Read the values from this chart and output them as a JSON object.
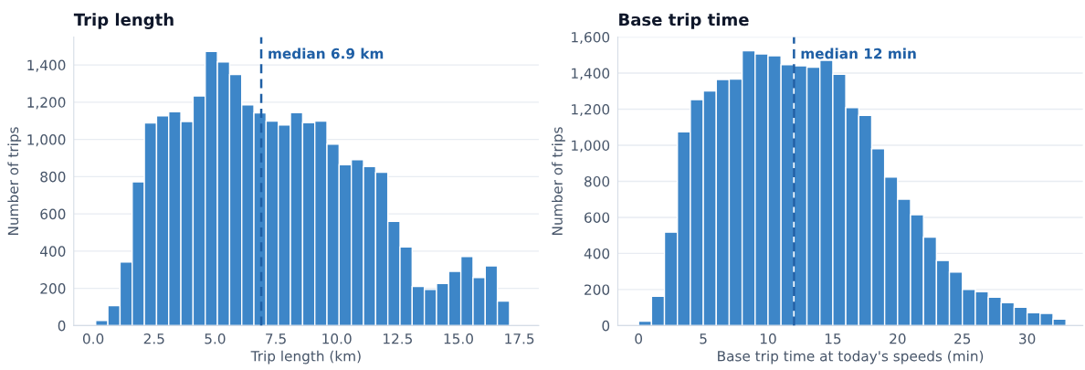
{
  "chart_data": [
    {
      "type": "histogram",
      "title": "Trip length",
      "xlabel": "Trip length (km)",
      "ylabel": "Number of trips",
      "color": "#3d86c8",
      "bins": [
        0.1,
        0.6,
        1.1,
        1.6,
        2.1,
        2.6,
        3.1,
        3.6,
        4.1,
        4.6,
        5.1,
        5.6,
        6.1,
        6.6,
        7.1,
        7.6,
        8.1,
        8.6,
        9.1,
        9.6,
        10.1,
        10.6,
        11.1,
        11.6,
        12.1,
        12.6,
        13.1,
        13.6,
        14.1,
        14.6,
        15.1,
        15.6,
        16.1,
        16.6,
        17.1,
        17.6
      ],
      "values": [
        27,
        107,
        342,
        772,
        1088,
        1126,
        1149,
        1096,
        1233,
        1472,
        1416,
        1348,
        1185,
        1142,
        1098,
        1077,
        1144,
        1090,
        1098,
        975,
        864,
        891,
        854,
        823,
        560,
        422,
        210,
        194,
        226,
        291,
        371,
        258,
        321,
        132,
        null
      ],
      "xlim": [
        -0.8,
        18.3
      ],
      "ylim": [
        0,
        1550
      ],
      "xticks": [
        {
          "value": 0,
          "label": "0.0"
        },
        {
          "value": 2.5,
          "label": "2.5"
        },
        {
          "value": 5,
          "label": "5.0"
        },
        {
          "value": 7.5,
          "label": "7.5"
        },
        {
          "value": 10,
          "label": "10.0"
        },
        {
          "value": 12.5,
          "label": "12.5"
        },
        {
          "value": 15,
          "label": "15.0"
        },
        {
          "value": 17.5,
          "label": "17.5"
        }
      ],
      "yticks": [
        0,
        200,
        400,
        600,
        800,
        {
          "value": 1000,
          "label": "1,000"
        },
        {
          "value": 1200,
          "label": "1,200"
        },
        {
          "value": 1400,
          "label": "1,400"
        }
      ],
      "ref_lines": [
        {
          "axis": "x",
          "value": 6.9,
          "label": "median 6.9 km",
          "color": "#1f5fa5",
          "line_style": "dashed"
        }
      ],
      "grid": "y"
    },
    {
      "type": "histogram",
      "title": "Base trip time",
      "xlabel": "Base trip time at today's speeds (min)",
      "ylabel": "Number of trips",
      "color": "#3d86c8",
      "bins": [
        0,
        1,
        2,
        3,
        4,
        5,
        6,
        7,
        8,
        9,
        10,
        11,
        12,
        13,
        14,
        15,
        16,
        17,
        18,
        19,
        20,
        21,
        22,
        23,
        24,
        25,
        26,
        27,
        28,
        29,
        30,
        31,
        32,
        33
      ],
      "values": [
        25,
        162,
        518,
        1074,
        1253,
        1301,
        1364,
        1367,
        1524,
        1506,
        1496,
        1446,
        1440,
        1433,
        1471,
        1393,
        1209,
        1166,
        981,
        823,
        701,
        615,
        491,
        361,
        297,
        201,
        188,
        157,
        127,
        102,
        72,
        68,
        36
      ],
      "xlim": [
        -1.6,
        34.3
      ],
      "ylim": [
        0,
        1600
      ],
      "xticks": [
        0,
        5,
        10,
        15,
        20,
        25,
        30
      ],
      "yticks": [
        0,
        200,
        400,
        600,
        800,
        {
          "value": 1000,
          "label": "1,000"
        },
        {
          "value": 1200,
          "label": "1,200"
        },
        {
          "value": 1400,
          "label": "1,400"
        },
        {
          "value": 1600,
          "label": "1,600"
        }
      ],
      "ref_lines": [
        {
          "axis": "x",
          "value": 12,
          "label": "median 12 min",
          "color": "#1f5fa5",
          "line_style": "dashed"
        }
      ],
      "grid": "y"
    }
  ]
}
